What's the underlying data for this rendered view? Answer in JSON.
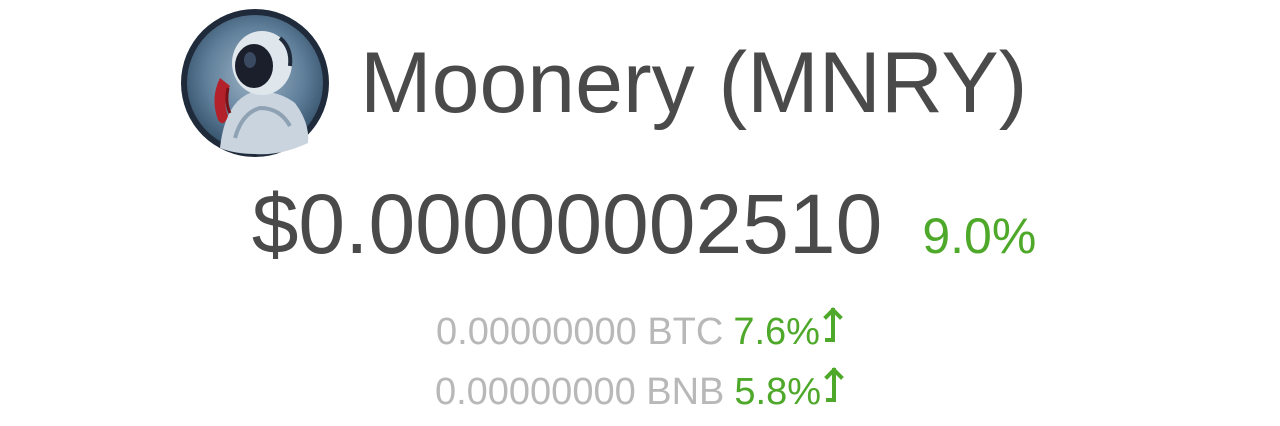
{
  "coin": {
    "name": "Moonery (MNRY)",
    "logo_icon": "astronaut-icon"
  },
  "price": {
    "usd": "$0.00000002510",
    "usd_change": "9.0%"
  },
  "pairs": [
    {
      "value": "0.00000000 BTC",
      "change": "7.6%",
      "direction_icon": "arrow-up-icon"
    },
    {
      "value": "0.00000000 BNB",
      "change": "5.8%",
      "direction_icon": "arrow-up-icon"
    }
  ],
  "colors": {
    "positive": "#4ea82a",
    "primary_text": "#4a4a4a",
    "secondary_text": "#b8b8b8"
  }
}
